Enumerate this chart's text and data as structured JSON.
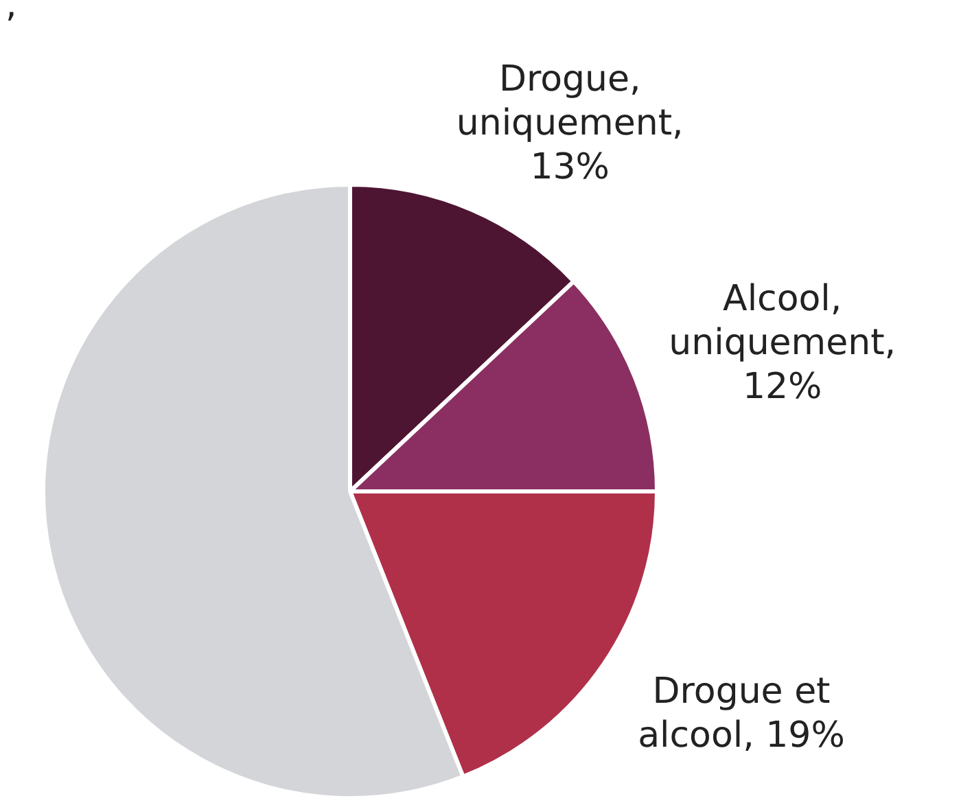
{
  "chart_data": {
    "type": "pie",
    "categories": [
      "Drogue, uniquement",
      "Alcool, uniquement",
      "Drogue et alcool",
      null
    ],
    "values": [
      13,
      12,
      19,
      56
    ],
    "colors": [
      "#4e1532",
      "#8b2f62",
      "#b0304a",
      "#d3d5d8"
    ],
    "value_labels": [
      "13%",
      "12%",
      "19%",
      null
    ],
    "annotations": [
      ","
    ],
    "legend": false
  }
}
